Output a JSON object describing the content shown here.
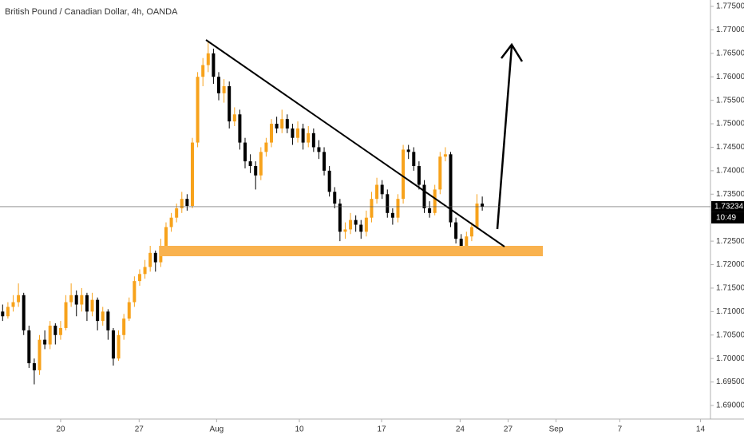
{
  "chart_data": {
    "type": "candlestick",
    "title": "British Pound / Canadian Dollar, 4h, OANDA",
    "up_color": "#f7a21b",
    "down_color": "#000000",
    "last_price": 1.73234,
    "countdown": "10:49",
    "ylim": [
      1.69,
      1.775
    ],
    "yticks": [
      {
        "value": 1.775,
        "label": "1.77500"
      },
      {
        "value": 1.77,
        "label": "1.77000"
      },
      {
        "value": 1.765,
        "label": "1.76500"
      },
      {
        "value": 1.76,
        "label": "1.76000"
      },
      {
        "value": 1.755,
        "label": "1.75500"
      },
      {
        "value": 1.75,
        "label": "1.75000"
      },
      {
        "value": 1.745,
        "label": "1.74500"
      },
      {
        "value": 1.74,
        "label": "1.74000"
      },
      {
        "value": 1.735,
        "label": "1.73500"
      },
      {
        "value": 1.725,
        "label": "1.72500"
      },
      {
        "value": 1.72,
        "label": "1.72000"
      },
      {
        "value": 1.715,
        "label": "1.71500"
      },
      {
        "value": 1.71,
        "label": "1.71000"
      },
      {
        "value": 1.705,
        "label": "1.70500"
      },
      {
        "value": 1.7,
        "label": "1.70000"
      },
      {
        "value": 1.695,
        "label": "1.69500"
      },
      {
        "value": 1.69,
        "label": "1.69000"
      }
    ],
    "xlim": [
      -0.5,
      134.3
    ],
    "xticks": [
      {
        "value": 11.0,
        "label": "20"
      },
      {
        "value": 25.9,
        "label": "27"
      },
      {
        "value": 40.6,
        "label": "Aug"
      },
      {
        "value": 56.3,
        "label": "10"
      },
      {
        "value": 71.9,
        "label": "17"
      },
      {
        "value": 86.8,
        "label": "24"
      },
      {
        "value": 95.9,
        "label": "27"
      },
      {
        "value": 105.0,
        "label": "Sep"
      },
      {
        "value": 117.1,
        "label": "7"
      },
      {
        "value": 132.4,
        "label": "14"
      }
    ],
    "candles": [
      [
        1.71,
        1.7115,
        1.708,
        1.709
      ],
      [
        1.709,
        1.712,
        1.7085,
        1.711
      ],
      [
        1.711,
        1.7135,
        1.71,
        1.712
      ],
      [
        1.712,
        1.716,
        1.711,
        1.7135
      ],
      [
        1.7135,
        1.714,
        1.705,
        1.706
      ],
      [
        1.706,
        1.707,
        1.698,
        1.699
      ],
      [
        1.699,
        1.7,
        1.6945,
        1.6975
      ],
      [
        1.6975,
        1.705,
        1.6965,
        1.704
      ],
      [
        1.704,
        1.706,
        1.702,
        1.703
      ],
      [
        1.703,
        1.708,
        1.702,
        1.707
      ],
      [
        1.707,
        1.7075,
        1.703,
        1.705
      ],
      [
        1.705,
        1.708,
        1.704,
        1.7065
      ],
      [
        1.7065,
        1.7135,
        1.706,
        1.712
      ],
      [
        1.712,
        1.716,
        1.711,
        1.7135
      ],
      [
        1.7135,
        1.7145,
        1.709,
        1.7115
      ],
      [
        1.7115,
        1.715,
        1.71,
        1.7135
      ],
      [
        1.7135,
        1.714,
        1.708,
        1.71
      ],
      [
        1.71,
        1.714,
        1.709,
        1.7125
      ],
      [
        1.7125,
        1.713,
        1.706,
        1.708
      ],
      [
        1.708,
        1.711,
        1.707,
        1.71
      ],
      [
        1.71,
        1.7105,
        1.704,
        1.706
      ],
      [
        1.706,
        1.7065,
        1.6985,
        1.7
      ],
      [
        1.7,
        1.706,
        1.6995,
        1.705
      ],
      [
        1.705,
        1.7095,
        1.704,
        1.7085
      ],
      [
        1.7085,
        1.713,
        1.708,
        1.712
      ],
      [
        1.712,
        1.7175,
        1.711,
        1.7165
      ],
      [
        1.7165,
        1.719,
        1.7155,
        1.718
      ],
      [
        1.718,
        1.721,
        1.717,
        1.7195
      ],
      [
        1.7195,
        1.724,
        1.7185,
        1.7225
      ],
      [
        1.7225,
        1.723,
        1.7185,
        1.7205
      ],
      [
        1.7205,
        1.7255,
        1.7195,
        1.724
      ],
      [
        1.724,
        1.729,
        1.723,
        1.728
      ],
      [
        1.728,
        1.731,
        1.727,
        1.73
      ],
      [
        1.73,
        1.733,
        1.729,
        1.732
      ],
      [
        1.732,
        1.7355,
        1.731,
        1.734
      ],
      [
        1.734,
        1.735,
        1.7315,
        1.7325
      ],
      [
        1.7325,
        1.747,
        1.732,
        1.746
      ],
      [
        1.746,
        1.761,
        1.745,
        1.76
      ],
      [
        1.76,
        1.764,
        1.758,
        1.7625
      ],
      [
        1.7625,
        1.7675,
        1.761,
        1.765
      ],
      [
        1.765,
        1.766,
        1.7585,
        1.76
      ],
      [
        1.76,
        1.761,
        1.755,
        1.7565
      ],
      [
        1.7565,
        1.7595,
        1.7545,
        1.758
      ],
      [
        1.758,
        1.759,
        1.749,
        1.7505
      ],
      [
        1.7505,
        1.7535,
        1.7495,
        1.752
      ],
      [
        1.752,
        1.753,
        1.7445,
        1.746
      ],
      [
        1.746,
        1.747,
        1.7405,
        1.742
      ],
      [
        1.742,
        1.7435,
        1.7395,
        1.741
      ],
      [
        1.741,
        1.742,
        1.736,
        1.739
      ],
      [
        1.739,
        1.745,
        1.738,
        1.744
      ],
      [
        1.744,
        1.747,
        1.743,
        1.746
      ],
      [
        1.746,
        1.751,
        1.745,
        1.75
      ],
      [
        1.75,
        1.7515,
        1.748,
        1.749
      ],
      [
        1.749,
        1.753,
        1.748,
        1.751
      ],
      [
        1.751,
        1.752,
        1.748,
        1.749
      ],
      [
        1.749,
        1.75,
        1.7455,
        1.747
      ],
      [
        1.747,
        1.7505,
        1.746,
        1.749
      ],
      [
        1.749,
        1.75,
        1.7445,
        1.746
      ],
      [
        1.746,
        1.7495,
        1.745,
        1.748
      ],
      [
        1.748,
        1.749,
        1.744,
        1.745
      ],
      [
        1.745,
        1.7465,
        1.7425,
        1.744
      ],
      [
        1.744,
        1.745,
        1.739,
        1.74
      ],
      [
        1.74,
        1.741,
        1.7345,
        1.7355
      ],
      [
        1.7355,
        1.7365,
        1.732,
        1.733
      ],
      [
        1.733,
        1.734,
        1.725,
        1.727
      ],
      [
        1.727,
        1.729,
        1.7255,
        1.7275
      ],
      [
        1.7275,
        1.731,
        1.7265,
        1.7295
      ],
      [
        1.7295,
        1.7305,
        1.727,
        1.7285
      ],
      [
        1.7285,
        1.7295,
        1.7255,
        1.727
      ],
      [
        1.727,
        1.7315,
        1.726,
        1.73
      ],
      [
        1.73,
        1.7355,
        1.729,
        1.734
      ],
      [
        1.734,
        1.7385,
        1.733,
        1.737
      ],
      [
        1.737,
        1.738,
        1.734,
        1.735
      ],
      [
        1.735,
        1.736,
        1.73,
        1.731
      ],
      [
        1.731,
        1.732,
        1.7285,
        1.73
      ],
      [
        1.73,
        1.735,
        1.729,
        1.734
      ],
      [
        1.734,
        1.7455,
        1.733,
        1.7445
      ],
      [
        1.7445,
        1.7455,
        1.7425,
        1.744
      ],
      [
        1.744,
        1.745,
        1.74,
        1.741
      ],
      [
        1.741,
        1.742,
        1.736,
        1.737
      ],
      [
        1.737,
        1.738,
        1.731,
        1.732
      ],
      [
        1.732,
        1.7335,
        1.73,
        1.731
      ],
      [
        1.731,
        1.737,
        1.7305,
        1.736
      ],
      [
        1.736,
        1.744,
        1.735,
        1.743
      ],
      [
        1.743,
        1.745,
        1.742,
        1.7435
      ],
      [
        1.7435,
        1.744,
        1.728,
        1.729
      ],
      [
        1.729,
        1.73,
        1.7245,
        1.7255
      ],
      [
        1.7255,
        1.7265,
        1.7235,
        1.724
      ],
      [
        1.724,
        1.727,
        1.7235,
        1.726
      ],
      [
        1.726,
        1.729,
        1.725,
        1.728
      ],
      [
        1.728,
        1.735,
        1.7275,
        1.733
      ],
      [
        1.733,
        1.7345,
        1.7315,
        1.73234
      ]
    ]
  }
}
